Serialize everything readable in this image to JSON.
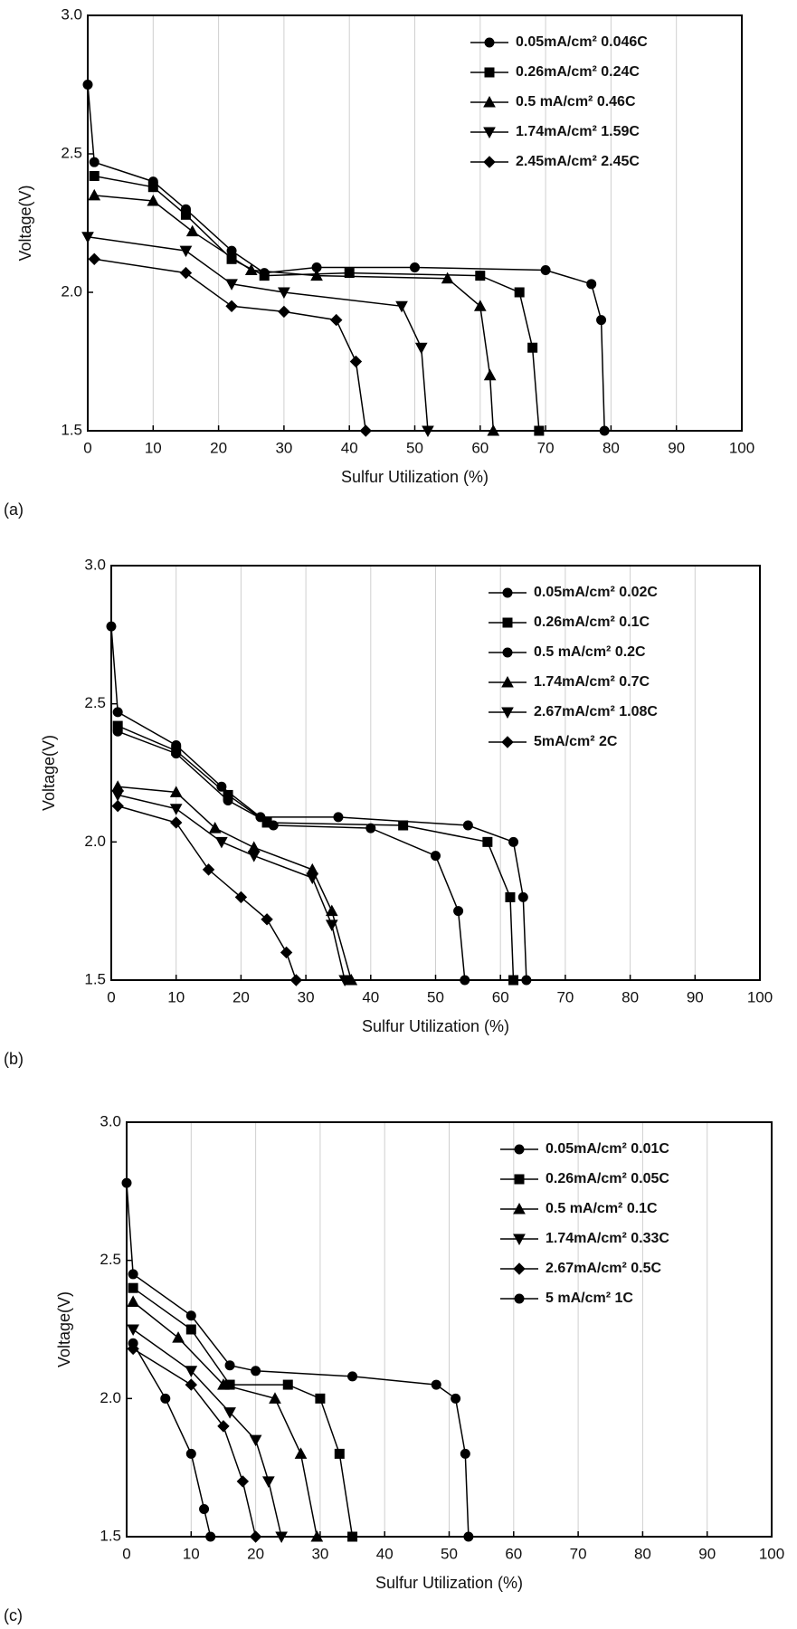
{
  "chart_data": [
    {
      "type": "line",
      "panel_label": "(a)",
      "xlabel": "Sulfur Utilization (%)",
      "ylabel": "Voltage(V)",
      "xlim": [
        0,
        100
      ],
      "ylim": [
        1.5,
        3.0
      ],
      "xticks": [
        0,
        10,
        20,
        30,
        40,
        50,
        60,
        70,
        80,
        90,
        100
      ],
      "yticks": [
        1.5,
        {
          "value": 2,
          "label": "2.0"
        },
        2.5,
        {
          "value": 3,
          "label": "3.0"
        }
      ],
      "grid": true,
      "legend": "upper right",
      "series": [
        {
          "name": "0.05mA/cm² 0.046C",
          "color": "#000000",
          "marker": "circle",
          "x": [
            0,
            1,
            10,
            15,
            22,
            27,
            35,
            50,
            70,
            77,
            78.5,
            79
          ],
          "y": [
            2.75,
            2.47,
            2.4,
            2.3,
            2.15,
            2.07,
            2.09,
            2.09,
            2.08,
            2.03,
            1.9,
            1.5
          ]
        },
        {
          "name": "0.26mA/cm² 0.24C",
          "color": "#000000",
          "marker": "square",
          "x": [
            1,
            10,
            15,
            22,
            27,
            40,
            60,
            66,
            68,
            69
          ],
          "y": [
            2.42,
            2.38,
            2.28,
            2.12,
            2.06,
            2.07,
            2.06,
            2.0,
            1.8,
            1.5
          ]
        },
        {
          "name": "0.5 mA/cm² 0.46C",
          "color": "#000000",
          "marker": "triangle",
          "x": [
            1,
            10,
            16,
            25,
            35,
            55,
            60,
            61.5,
            62
          ],
          "y": [
            2.35,
            2.33,
            2.22,
            2.08,
            2.06,
            2.05,
            1.95,
            1.7,
            1.5
          ]
        },
        {
          "name": "1.74mA/cm² 1.59C",
          "color": "#000000",
          "marker": "triangle-down",
          "x": [
            0,
            15,
            22,
            30,
            48,
            51,
            52
          ],
          "y": [
            2.2,
            2.15,
            2.03,
            2.0,
            1.95,
            1.8,
            1.5
          ]
        },
        {
          "name": "2.45mA/cm² 2.45C",
          "color": "#000000",
          "marker": "diamond",
          "x": [
            1,
            15,
            22,
            30,
            38,
            41,
            42.5
          ],
          "y": [
            2.12,
            2.07,
            1.95,
            1.93,
            1.9,
            1.75,
            1.5
          ]
        }
      ]
    },
    {
      "type": "line",
      "panel_label": "(b)",
      "xlabel": "Sulfur Utilization (%)",
      "ylabel": "Voltage(V)",
      "xlim": [
        0,
        100
      ],
      "ylim": [
        1.5,
        3.0
      ],
      "xticks": [
        0,
        10,
        20,
        30,
        40,
        50,
        60,
        70,
        80,
        90,
        100
      ],
      "yticks": [
        1.5,
        {
          "value": 2,
          "label": "2.0"
        },
        2.5,
        {
          "value": 3,
          "label": "3.0"
        }
      ],
      "grid": true,
      "legend": "upper right",
      "series": [
        {
          "name": "0.05mA/cm² 0.02C",
          "color": "#000000",
          "marker": "circle",
          "x": [
            0,
            1,
            10,
            17,
            23,
            35,
            55,
            62,
            63.5,
            64
          ],
          "y": [
            2.78,
            2.47,
            2.35,
            2.2,
            2.09,
            2.09,
            2.06,
            2.0,
            1.8,
            1.5
          ]
        },
        {
          "name": "0.26mA/cm² 0.1C",
          "color": "#000000",
          "marker": "square",
          "x": [
            1,
            10,
            18,
            24,
            45,
            58,
            61.5,
            62
          ],
          "y": [
            2.42,
            2.33,
            2.17,
            2.07,
            2.06,
            2.0,
            1.8,
            1.5
          ]
        },
        {
          "name": "0.5 mA/cm² 0.2C",
          "color": "#000000",
          "marker": "circle",
          "x": [
            1,
            10,
            18,
            25,
            40,
            50,
            53.5,
            54.5
          ],
          "y": [
            2.4,
            2.32,
            2.15,
            2.06,
            2.05,
            1.95,
            1.75,
            1.5
          ]
        },
        {
          "name": "1.74mA/cm² 0.7C",
          "color": "#000000",
          "marker": "triangle",
          "x": [
            1,
            10,
            16,
            22,
            31,
            34,
            37
          ],
          "y": [
            2.2,
            2.18,
            2.05,
            1.98,
            1.9,
            1.75,
            1.5
          ]
        },
        {
          "name": "2.67mA/cm² 1.08C",
          "color": "#000000",
          "marker": "triangle-down",
          "x": [
            1,
            10,
            17,
            22,
            31,
            34,
            36
          ],
          "y": [
            2.17,
            2.12,
            2.0,
            1.95,
            1.87,
            1.7,
            1.5
          ]
        },
        {
          "name": "5mA/cm² 2C",
          "color": "#000000",
          "marker": "diamond",
          "x": [
            1,
            10,
            15,
            20,
            24,
            27,
            28.5
          ],
          "y": [
            2.13,
            2.07,
            1.9,
            1.8,
            1.72,
            1.6,
            1.5
          ]
        }
      ]
    },
    {
      "type": "line",
      "panel_label": "(c)",
      "xlabel": "Sulfur Utilization (%)",
      "ylabel": "Voltage(V)",
      "xlim": [
        0,
        100
      ],
      "ylim": [
        1.5,
        3.0
      ],
      "xticks": [
        0,
        10,
        20,
        30,
        40,
        50,
        60,
        70,
        80,
        90,
        100
      ],
      "yticks": [
        1.5,
        {
          "value": 2,
          "label": "2.0"
        },
        2.5,
        {
          "value": 3,
          "label": "3.0"
        }
      ],
      "grid": true,
      "legend": "upper right",
      "series": [
        {
          "name": "0.05mA/cm² 0.01C",
          "color": "#000000",
          "marker": "circle",
          "x": [
            0,
            1,
            10,
            16,
            20,
            35,
            48,
            51,
            52.5,
            53
          ],
          "y": [
            2.78,
            2.45,
            2.3,
            2.12,
            2.1,
            2.08,
            2.05,
            2.0,
            1.8,
            1.5
          ]
        },
        {
          "name": "0.26mA/cm² 0.05C",
          "color": "#000000",
          "marker": "square",
          "x": [
            1,
            10,
            16,
            25,
            30,
            33,
            35
          ],
          "y": [
            2.4,
            2.25,
            2.05,
            2.05,
            2.0,
            1.8,
            1.5
          ]
        },
        {
          "name": "0.5 mA/cm² 0.1C",
          "color": "#000000",
          "marker": "triangle",
          "x": [
            1,
            8,
            15,
            23,
            27,
            29.5
          ],
          "y": [
            2.35,
            2.22,
            2.05,
            2.0,
            1.8,
            1.5
          ]
        },
        {
          "name": "1.74mA/cm² 0.33C",
          "color": "#000000",
          "marker": "triangle-down",
          "x": [
            1,
            10,
            16,
            20,
            22,
            24
          ],
          "y": [
            2.25,
            2.1,
            1.95,
            1.85,
            1.7,
            1.5
          ]
        },
        {
          "name": "2.67mA/cm² 0.5C",
          "color": "#000000",
          "marker": "diamond",
          "x": [
            1,
            10,
            15,
            18,
            20
          ],
          "y": [
            2.18,
            2.05,
            1.9,
            1.7,
            1.5
          ]
        },
        {
          "name": "5 mA/cm² 1C",
          "color": "#000000",
          "marker": "circle",
          "x": [
            1,
            6,
            10,
            12,
            13
          ],
          "y": [
            2.2,
            2.0,
            1.8,
            1.6,
            1.5
          ]
        }
      ]
    }
  ]
}
